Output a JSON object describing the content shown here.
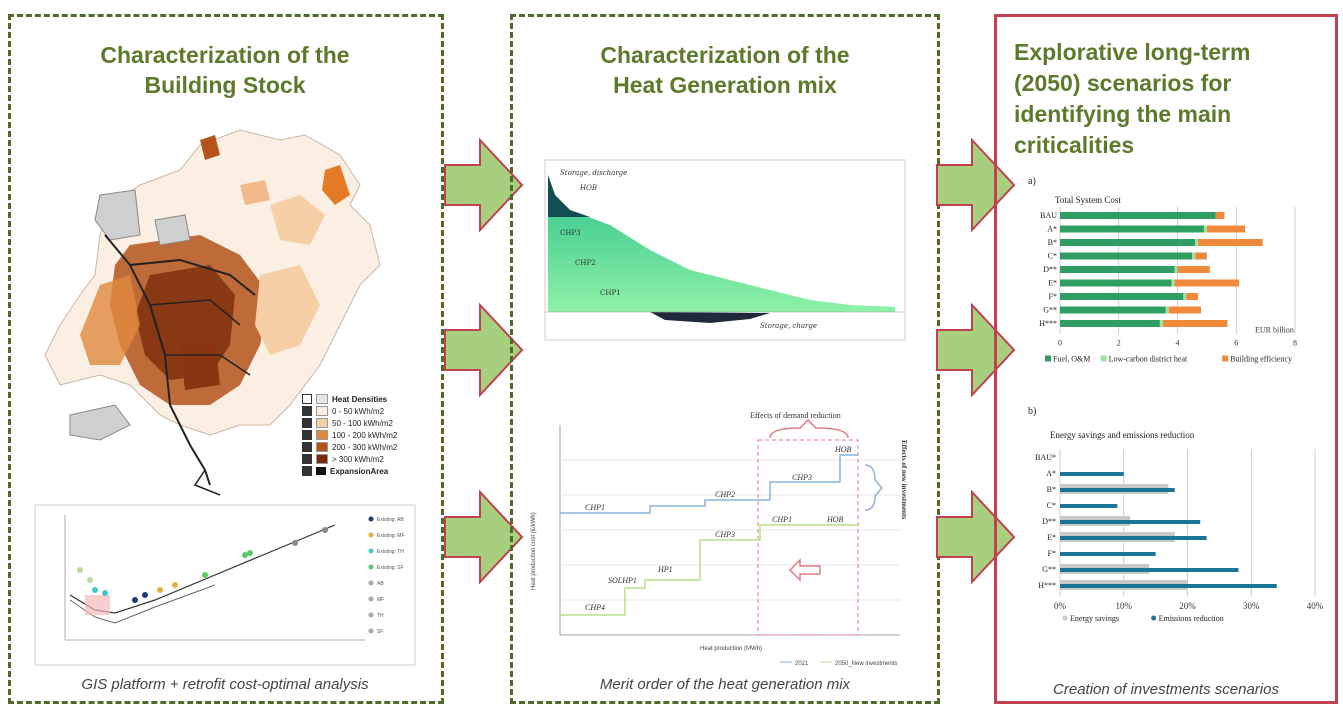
{
  "panels": {
    "left": {
      "title_line1": "Characterization of the",
      "title_line2": "Building Stock",
      "caption": "GIS platform + retrofit cost-optimal analysis",
      "legend": {
        "title": "Heat Densities",
        "items": [
          "0 - 50 kWh/m2",
          "50 - 100 kWh/m2",
          "100 - 200 kWh/m2",
          "200 - 300 kWh/m2",
          "> 300 kWh/m2"
        ],
        "expansion": "ExpansionArea",
        "colors": [
          "#fbeee2",
          "#f6cfa6",
          "#e08a3f",
          "#b4541b",
          "#7a2c0a"
        ]
      },
      "scatter_legend": [
        "Existing: AB",
        "Existing: MF",
        "Existing: TH",
        "Existing: SF",
        "AB",
        "MF",
        "TH",
        "SF"
      ]
    },
    "middle": {
      "title_line1": "Characterization of the",
      "title_line2": "Heat Generation mix",
      "caption": "Merit order of the heat generation mix",
      "duration_labels": {
        "storage_discharge": "Storage, discharge",
        "hob": "HOB",
        "chp1": "CHP1",
        "chp2": "CHP2",
        "chp3": "CHP3",
        "storage_charge": "Storage, charge"
      },
      "merit": {
        "top_label": "Effects of demand reduction",
        "side_label": "Effects of new investments",
        "steps_2021": [
          "CHP1",
          "CHP2",
          "CHP3",
          "HOB"
        ],
        "steps_2050": [
          "CHP4",
          "SOLHP1",
          "HP1",
          "CHP3",
          "CHP1",
          "HOB"
        ],
        "xlabel": "Heat production (MWh)",
        "ylabel": "Heat production cost (€/kWh)",
        "legend": [
          "2021",
          "2050_New investments"
        ]
      }
    },
    "right": {
      "title_lines": [
        "Explorative long-term",
        "(2050) scenarios for",
        "identifying the main",
        "criticalities"
      ],
      "caption": "Creation of investments scenarios"
    }
  },
  "colors": {
    "title_green": "#5c7a2c",
    "arrow_fill": "#a8cf7e",
    "arrow_stroke": "#c0414f",
    "bar_green": "#2e9e63",
    "bar_lightgreen": "#9fe29f",
    "bar_orange": "#ef8a3c",
    "bar_gray": "#c9c9c9",
    "bar_blue": "#1b7596"
  },
  "chart_data": [
    {
      "type": "bar",
      "label": "a)",
      "title": "Total System Cost",
      "categories": [
        "BAU",
        "A*",
        "B*",
        "C*",
        "D**",
        "E*",
        "F*",
        "G**",
        "H***"
      ],
      "series": [
        {
          "name": "Fuel, O&M",
          "values": [
            5.3,
            4.9,
            4.6,
            4.5,
            3.9,
            3.8,
            4.2,
            3.6,
            3.4
          ]
        },
        {
          "name": "Low-carbon district heat",
          "values": [
            0.0,
            0.1,
            0.1,
            0.1,
            0.1,
            0.1,
            0.1,
            0.1,
            0.1
          ]
        },
        {
          "name": "Building efficiency",
          "values": [
            0.3,
            1.3,
            2.2,
            0.4,
            1.1,
            2.2,
            0.4,
            1.1,
            2.2
          ]
        }
      ],
      "xlabel": "EUR billion",
      "xlim": [
        0,
        8
      ],
      "xticks": [
        "0",
        "2",
        "4",
        "6",
        "8"
      ],
      "legend_position": "bottom"
    },
    {
      "type": "bar",
      "label": "b)",
      "title": "Energy savings and emissions reduction",
      "categories": [
        "BAU*",
        "A*",
        "B*",
        "C*",
        "D**",
        "E*",
        "F*",
        "G**",
        "H***"
      ],
      "series": [
        {
          "name": "Energy savings",
          "values": [
            0,
            0,
            17,
            0,
            11,
            18,
            0,
            14,
            20
          ]
        },
        {
          "name": "Emissions reduction",
          "values": [
            0,
            10,
            18,
            9,
            22,
            23,
            15,
            28,
            34
          ]
        }
      ],
      "xlim": [
        0,
        40
      ],
      "xticks": [
        "0%",
        "10%",
        "20%",
        "30%",
        "40%"
      ],
      "legend_position": "bottom"
    }
  ]
}
